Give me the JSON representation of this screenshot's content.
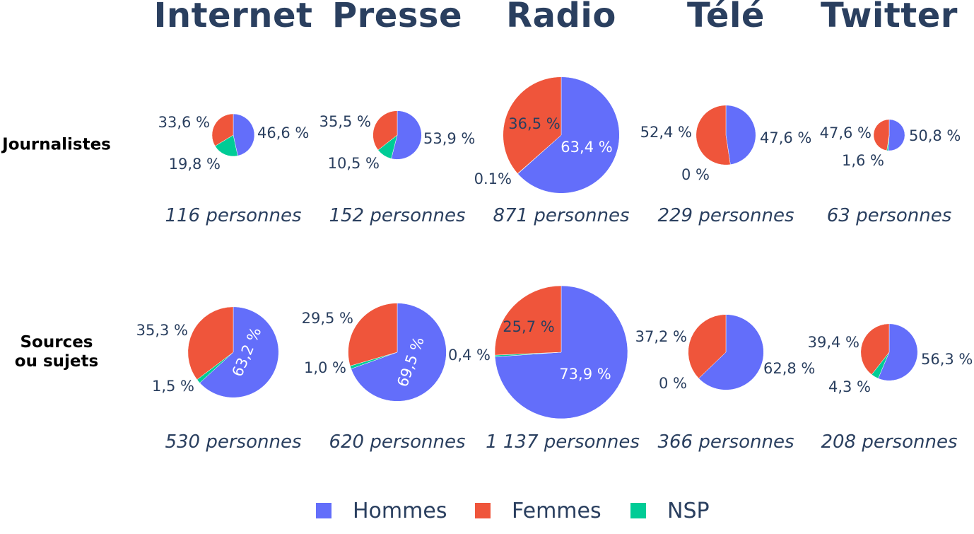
{
  "colors": {
    "Hommes": "#636efa",
    "Femmes": "#ef553b",
    "NSP": "#00cc96"
  },
  "legend": [
    {
      "name": "Hommes",
      "label": "Hommes"
    },
    {
      "name": "Femmes",
      "label": "Femmes"
    },
    {
      "name": "NSP",
      "label": "NSP"
    }
  ],
  "rows": [
    {
      "label_line1": "Journalistes",
      "label_line2": ""
    },
    {
      "label_line1": "Sources",
      "label_line2": "ou sujets"
    }
  ],
  "chart_data": [
    {
      "type": "pie",
      "title": "Internet",
      "row": "Journalistes",
      "persons": 116,
      "persons_label": "116 personnes",
      "slices": [
        {
          "name": "Hommes",
          "value": 46.6,
          "label": "46,6 %"
        },
        {
          "name": "Femmes",
          "value": 33.6,
          "label": "33,6 %"
        },
        {
          "name": "NSP",
          "value": 19.8,
          "label": "19,8 %"
        }
      ]
    },
    {
      "type": "pie",
      "title": "Presse",
      "row": "Journalistes",
      "persons": 152,
      "persons_label": "152 personnes",
      "slices": [
        {
          "name": "Hommes",
          "value": 53.9,
          "label": "53,9 %"
        },
        {
          "name": "Femmes",
          "value": 35.5,
          "label": "35,5 %"
        },
        {
          "name": "NSP",
          "value": 10.5,
          "label": "10,5 %"
        }
      ]
    },
    {
      "type": "pie",
      "title": "Radio",
      "row": "Journalistes",
      "persons": 871,
      "persons_label": "871 personnes",
      "slices": [
        {
          "name": "Hommes",
          "value": 63.4,
          "label": "63,4 %"
        },
        {
          "name": "Femmes",
          "value": 36.5,
          "label": "36,5 %"
        },
        {
          "name": "NSP",
          "value": 0.1,
          "label": "0.1%"
        }
      ]
    },
    {
      "type": "pie",
      "title": "Télé",
      "row": "Journalistes",
      "persons": 229,
      "persons_label": "229 personnes",
      "slices": [
        {
          "name": "Hommes",
          "value": 47.6,
          "label": "47,6 %"
        },
        {
          "name": "Femmes",
          "value": 52.4,
          "label": "52,4 %"
        },
        {
          "name": "NSP",
          "value": 0,
          "label": "0 %"
        }
      ]
    },
    {
      "type": "pie",
      "title": "Twitter",
      "row": "Journalistes",
      "persons": 63,
      "persons_label": "63 personnes",
      "slices": [
        {
          "name": "Hommes",
          "value": 50.8,
          "label": "50,8 %"
        },
        {
          "name": "Femmes",
          "value": 47.6,
          "label": "47,6 %"
        },
        {
          "name": "NSP",
          "value": 1.6,
          "label": "1,6 %"
        }
      ]
    },
    {
      "type": "pie",
      "title": "Internet",
      "row": "Sources ou sujets",
      "persons": 530,
      "persons_label": "530 personnes",
      "slices": [
        {
          "name": "Hommes",
          "value": 63.2,
          "label": "63,2 %"
        },
        {
          "name": "Femmes",
          "value": 35.3,
          "label": "35,3 %"
        },
        {
          "name": "NSP",
          "value": 1.5,
          "label": "1,5 %"
        }
      ]
    },
    {
      "type": "pie",
      "title": "Presse",
      "row": "Sources ou sujets",
      "persons": 620,
      "persons_label": "620 personnes",
      "slices": [
        {
          "name": "Hommes",
          "value": 69.5,
          "label": "69,5 %"
        },
        {
          "name": "Femmes",
          "value": 29.5,
          "label": "29,5 %"
        },
        {
          "name": "NSP",
          "value": 1.0,
          "label": "1,0 %"
        }
      ]
    },
    {
      "type": "pie",
      "title": "Radio",
      "row": "Sources ou sujets",
      "persons": 1137,
      "persons_label": "1 137 personnes",
      "slices": [
        {
          "name": "Hommes",
          "value": 73.9,
          "label": "73,9 %"
        },
        {
          "name": "Femmes",
          "value": 25.7,
          "label": "25,7 %"
        },
        {
          "name": "NSP",
          "value": 0.4,
          "label": "0,4 %"
        }
      ]
    },
    {
      "type": "pie",
      "title": "Télé",
      "row": "Sources ou sujets",
      "persons": 366,
      "persons_label": "366 personnes",
      "slices": [
        {
          "name": "Hommes",
          "value": 62.8,
          "label": "62,8 %"
        },
        {
          "name": "Femmes",
          "value": 37.2,
          "label": "37,2 %"
        },
        {
          "name": "NSP",
          "value": 0,
          "label": "0 %"
        }
      ]
    },
    {
      "type": "pie",
      "title": "Twitter",
      "row": "Sources ou sujets",
      "persons": 208,
      "persons_label": "208 personnes",
      "slices": [
        {
          "name": "Hommes",
          "value": 56.3,
          "label": "56,3 %"
        },
        {
          "name": "Femmes",
          "value": 39.4,
          "label": "39,4 %"
        },
        {
          "name": "NSP",
          "value": 4.3,
          "label": "4,3 %"
        }
      ]
    }
  ]
}
